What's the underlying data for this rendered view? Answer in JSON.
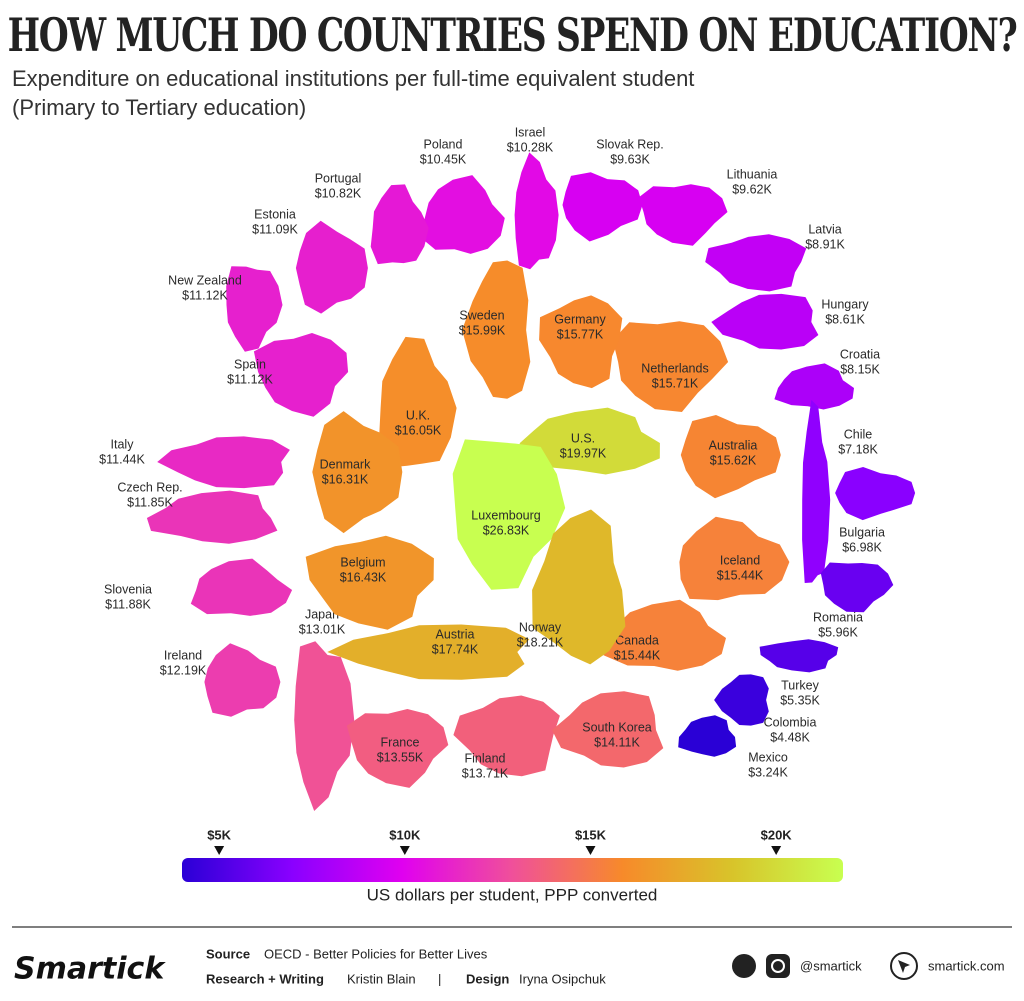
{
  "chart_data": {
    "type": "cartogram",
    "title": "HOW MUCH DO COUNTRIES SPEND ON EDUCATION?",
    "subtitle": [
      "Expenditure on educational institutions per full-time equivalent student",
      "(Primary to Tertiary education)"
    ],
    "categories": [
      "Poland",
      "Israel",
      "Slovak Rep.",
      "Lithuania",
      "Latvia",
      "Hungary",
      "Croatia",
      "Chile",
      "Bulgaria",
      "Romania",
      "Turkey",
      "Colombia",
      "Mexico",
      "Portugal",
      "Estonia",
      "New Zealand",
      "Spain",
      "Italy",
      "Czech Rep.",
      "Slovenia",
      "Ireland",
      "Japan",
      "France",
      "Finland",
      "South Korea",
      "Canada",
      "Iceland",
      "Australia",
      "Netherlands",
      "Germany",
      "Sweden",
      "U.S.",
      "U.K.",
      "Denmark",
      "Luxembourg",
      "Belgium",
      "Austria",
      "Norway"
    ],
    "values": [
      10450,
      10280,
      9630,
      9620,
      8910,
      8610,
      8150,
      7180,
      6980,
      5960,
      5350,
      4480,
      3240,
      10820,
      11090,
      11120,
      11120,
      11440,
      11850,
      11880,
      12190,
      13010,
      13550,
      13710,
      14110,
      15440,
      15440,
      15620,
      15710,
      15770,
      15990,
      19970,
      16050,
      16310,
      26830,
      16430,
      17740,
      18210
    ],
    "value_labels": [
      "$10.45K",
      "$10.28K",
      "$9.63K",
      "$9.62K",
      "$8.91K",
      "$8.61K",
      "$8.15K",
      "$7.18K",
      "$6.98K",
      "$5.96K",
      "$5.35K",
      "$4.48K",
      "$3.24K",
      "$10.82K",
      "$11.09K",
      "$11.12K",
      "$11.12K",
      "$11.44K",
      "$11.85K",
      "$11.88K",
      "$12.19K",
      "$13.01K",
      "$13.55K",
      "$13.71K",
      "$14.11K",
      "$15.44K",
      "$15.44K",
      "$15.62K",
      "$15.71K",
      "$15.77K",
      "$15.99K",
      "$19.97K",
      "$16.05K",
      "$16.31K",
      "$26.83K",
      "$16.43K",
      "$17.74K",
      "$18.21K"
    ],
    "clim": [
      4000,
      21800
    ],
    "cticks": [
      {
        "value": 5000,
        "label": "$5K"
      },
      {
        "value": 10000,
        "label": "$10K"
      },
      {
        "value": 15000,
        "label": "$15K"
      },
      {
        "value": 20000,
        "label": "$20K"
      }
    ],
    "colors": [
      "#2a00d6",
      "#8a00ff",
      "#e000f0",
      "#f0509a",
      "#f78a2a",
      "#d8c42a",
      "#c8ff50"
    ],
    "clabel": "US dollars per student, PPP converted"
  },
  "footer": {
    "logo": "Smartick",
    "source_label": "Source",
    "source": "OECD - Better Policies for Better Lives",
    "research_label": "Research + Writing",
    "research": "Kristin Blain",
    "separator": "|",
    "design_label": "Design",
    "design": "Iryna Osipchuk",
    "handle": "@smartick",
    "site": "smartick.com"
  }
}
